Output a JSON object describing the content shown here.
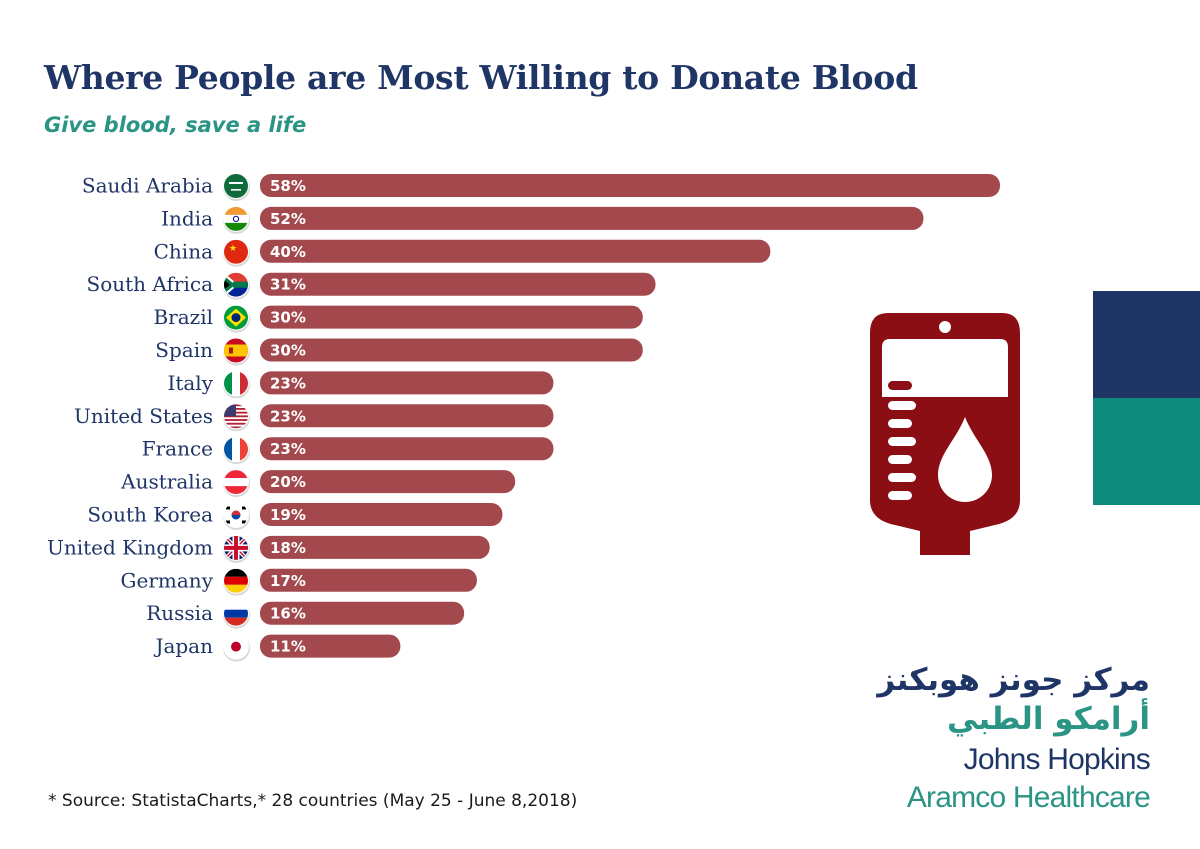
{
  "header": {
    "title": "Where People are Most Willing to Donate Blood",
    "subtitle": "Give blood, save a life"
  },
  "chart_data": {
    "type": "bar",
    "orientation": "horizontal",
    "title": "Where People are Most Willing to Donate Blood",
    "subtitle": "Give blood, save a life",
    "categories": [
      "Saudi Arabia",
      "India",
      "China",
      "South Africa",
      "Brazil",
      "Spain",
      "Italy",
      "United States",
      "France",
      "Australia",
      "South Korea",
      "United Kingdom",
      "Germany",
      "Russia",
      "Japan"
    ],
    "values": [
      58,
      52,
      40,
      31,
      30,
      30,
      23,
      23,
      23,
      20,
      19,
      18,
      17,
      16,
      11
    ],
    "value_labels": [
      "58%",
      "52%",
      "40%",
      "31%",
      "30%",
      "30%",
      "23%",
      "23%",
      "23%",
      "20%",
      "19%",
      "18%",
      "17%",
      "16%",
      "11%"
    ],
    "flag_icons": [
      "saudi-arabia-flag-icon",
      "india-flag-icon",
      "china-flag-icon",
      "south-africa-flag-icon",
      "brazil-flag-icon",
      "spain-flag-icon",
      "italy-flag-icon",
      "united-states-flag-icon",
      "france-flag-icon",
      "austria-flag-icon",
      "south-korea-flag-icon",
      "united-kingdom-flag-icon",
      "germany-flag-icon",
      "russia-flag-icon",
      "japan-flag-icon"
    ],
    "xlabel": "",
    "ylabel": "",
    "xlim": [
      0,
      58
    ],
    "grid": false,
    "legend": "none",
    "bar_color": "#a3484c"
  },
  "source": "* Source: StatistaCharts,* 28 countries (May 25 - June 8,2018)",
  "decor": {
    "icon": "blood-bag-icon",
    "colors": {
      "navy": "#1f3566",
      "teal": "#0e8a7c",
      "blood": "#8b0e14"
    }
  },
  "logo": {
    "arabic_line1": "مركز جونز هوبكنز",
    "arabic_line2": "أرامكو الطبي",
    "english_line1": "Johns Hopkins",
    "english_line2": "Aramco Healthcare"
  }
}
